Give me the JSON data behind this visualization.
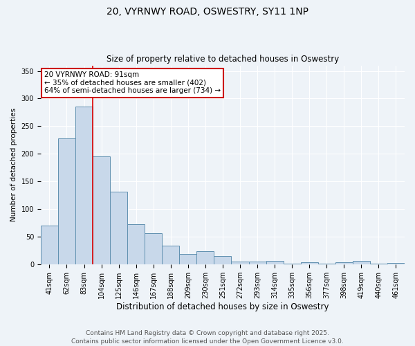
{
  "title_line1": "20, VYRNWY ROAD, OSWESTRY, SY11 1NP",
  "title_line2": "Size of property relative to detached houses in Oswestry",
  "xlabel": "Distribution of detached houses by size in Oswestry",
  "ylabel": "Number of detached properties",
  "categories": [
    "41sqm",
    "62sqm",
    "83sqm",
    "104sqm",
    "125sqm",
    "146sqm",
    "167sqm",
    "188sqm",
    "209sqm",
    "230sqm",
    "251sqm",
    "272sqm",
    "293sqm",
    "314sqm",
    "335sqm",
    "356sqm",
    "377sqm",
    "398sqm",
    "419sqm",
    "440sqm",
    "461sqm"
  ],
  "values": [
    70,
    228,
    285,
    195,
    132,
    73,
    57,
    34,
    19,
    24,
    15,
    5,
    5,
    6,
    2,
    4,
    2,
    4,
    6,
    2,
    3
  ],
  "bar_color": "#c8d8ea",
  "bar_edge_color": "#6090b0",
  "background_color": "#eef3f8",
  "grid_color": "#ffffff",
  "red_line_index": 2,
  "annotation_line1": "20 VYRNWY ROAD: 91sqm",
  "annotation_line2": "← 35% of detached houses are smaller (402)",
  "annotation_line3": "64% of semi-detached houses are larger (734) →",
  "annotation_box_color": "#ffffff",
  "annotation_box_edge": "#cc0000",
  "ylim": [
    0,
    360
  ],
  "yticks": [
    0,
    50,
    100,
    150,
    200,
    250,
    300,
    350
  ],
  "footer": "Contains HM Land Registry data © Crown copyright and database right 2025.\nContains public sector information licensed under the Open Government Licence v3.0.",
  "footer_fontsize": 6.5,
  "title1_fontsize": 10,
  "title2_fontsize": 8.5,
  "xlabel_fontsize": 8.5,
  "ylabel_fontsize": 7.5,
  "tick_fontsize": 7,
  "annot_fontsize": 7.5
}
